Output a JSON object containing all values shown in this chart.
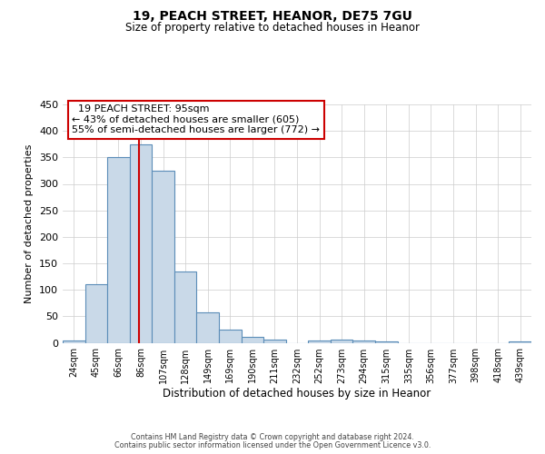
{
  "title": "19, PEACH STREET, HEANOR, DE75 7GU",
  "subtitle": "Size of property relative to detached houses in Heanor",
  "xlabel": "Distribution of detached houses by size in Heanor",
  "ylabel": "Number of detached properties",
  "bin_labels": [
    "24sqm",
    "45sqm",
    "66sqm",
    "86sqm",
    "107sqm",
    "128sqm",
    "149sqm",
    "169sqm",
    "190sqm",
    "211sqm",
    "232sqm",
    "252sqm",
    "273sqm",
    "294sqm",
    "315sqm",
    "335sqm",
    "356sqm",
    "377sqm",
    "398sqm",
    "418sqm",
    "439sqm"
  ],
  "bar_values": [
    5,
    110,
    350,
    375,
    325,
    135,
    57,
    25,
    11,
    6,
    0,
    5,
    6,
    4,
    3,
    0,
    0,
    0,
    0,
    0,
    3
  ],
  "bar_color": "#c9d9e8",
  "bar_edge_color": "#5b8db8",
  "ylim": [
    0,
    450
  ],
  "yticks": [
    0,
    50,
    100,
    150,
    200,
    250,
    300,
    350,
    400,
    450
  ],
  "property_line_x": 3.43,
  "property_line_color": "#cc0000",
  "annotation_title": "19 PEACH STREET: 95sqm",
  "annotation_line1": "← 43% of detached houses are smaller (605)",
  "annotation_line2": "55% of semi-detached houses are larger (772) →",
  "annotation_box_color": "#ffffff",
  "annotation_box_edge": "#cc0000",
  "footer1": "Contains HM Land Registry data © Crown copyright and database right 2024.",
  "footer2": "Contains public sector information licensed under the Open Government Licence v3.0.",
  "bg_color": "#ffffff",
  "grid_color": "#cccccc"
}
